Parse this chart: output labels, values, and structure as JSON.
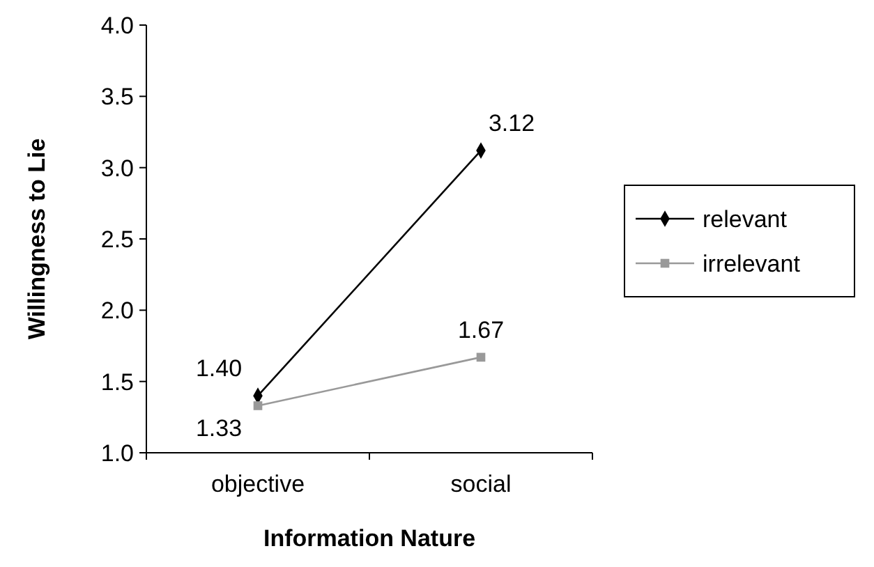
{
  "chart_data": {
    "type": "line",
    "xlabel": "Information Nature",
    "ylabel": "Willingness to Lie",
    "categories": [
      "objective",
      "social"
    ],
    "series": [
      {
        "name": "relevant",
        "color": "#000000",
        "marker": "diamond",
        "values": [
          1.4,
          3.12
        ],
        "value_labels": [
          "1.40",
          "3.12"
        ]
      },
      {
        "name": "irrelevant",
        "color": "#999999",
        "marker": "square",
        "values": [
          1.33,
          1.67
        ],
        "value_labels": [
          "1.33",
          "1.67"
        ]
      }
    ],
    "ylim": [
      1,
      4
    ],
    "yticks": [
      {
        "value": 1,
        "label": "1.0"
      },
      {
        "value": 1.5,
        "label": "1.5"
      },
      {
        "value": 2,
        "label": "2.0"
      },
      {
        "value": 2.5,
        "label": "2.5"
      },
      {
        "value": 3,
        "label": "3.0"
      },
      {
        "value": 3.5,
        "label": "3.5"
      },
      {
        "value": 4,
        "label": "4.0"
      }
    ],
    "grid": false,
    "legend": "right"
  }
}
